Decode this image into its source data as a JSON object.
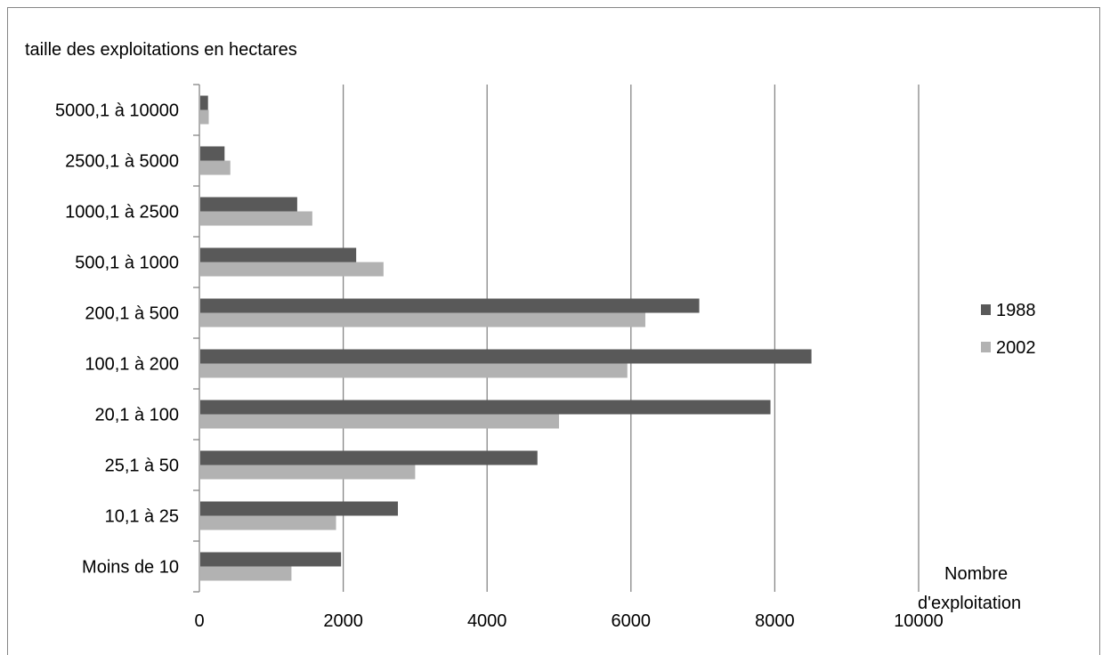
{
  "chart_data": {
    "type": "bar",
    "orientation": "horizontal",
    "ylabel": "taille des exploitations en hectares",
    "xlabel": "Nombre d'exploitation",
    "xlabel_lines": [
      "Nombre",
      "d'exploitation"
    ],
    "xlim": [
      0,
      10000
    ],
    "xticks": [
      0,
      2000,
      4000,
      6000,
      8000,
      10000
    ],
    "grid": "vertical",
    "legend_position": "right",
    "categories": [
      "Moins de 10",
      "10,1 à 25",
      "25,1 à 50",
      "20,1 à 100",
      "100,1 à 200",
      "200,1 à 500",
      "500,1 à 1000",
      "1000,1 à 2500",
      "2500,1 à 5000",
      "5000,1 à 10000"
    ],
    "series": [
      {
        "name": "1988",
        "color": "#595959",
        "values": [
          1970,
          2760,
          4700,
          7940,
          8510,
          6950,
          2180,
          1360,
          350,
          120
        ]
      },
      {
        "name": "2002",
        "color": "#b2b2b2",
        "values": [
          1280,
          1900,
          3000,
          5000,
          5950,
          6200,
          2560,
          1570,
          430,
          130
        ]
      }
    ]
  }
}
